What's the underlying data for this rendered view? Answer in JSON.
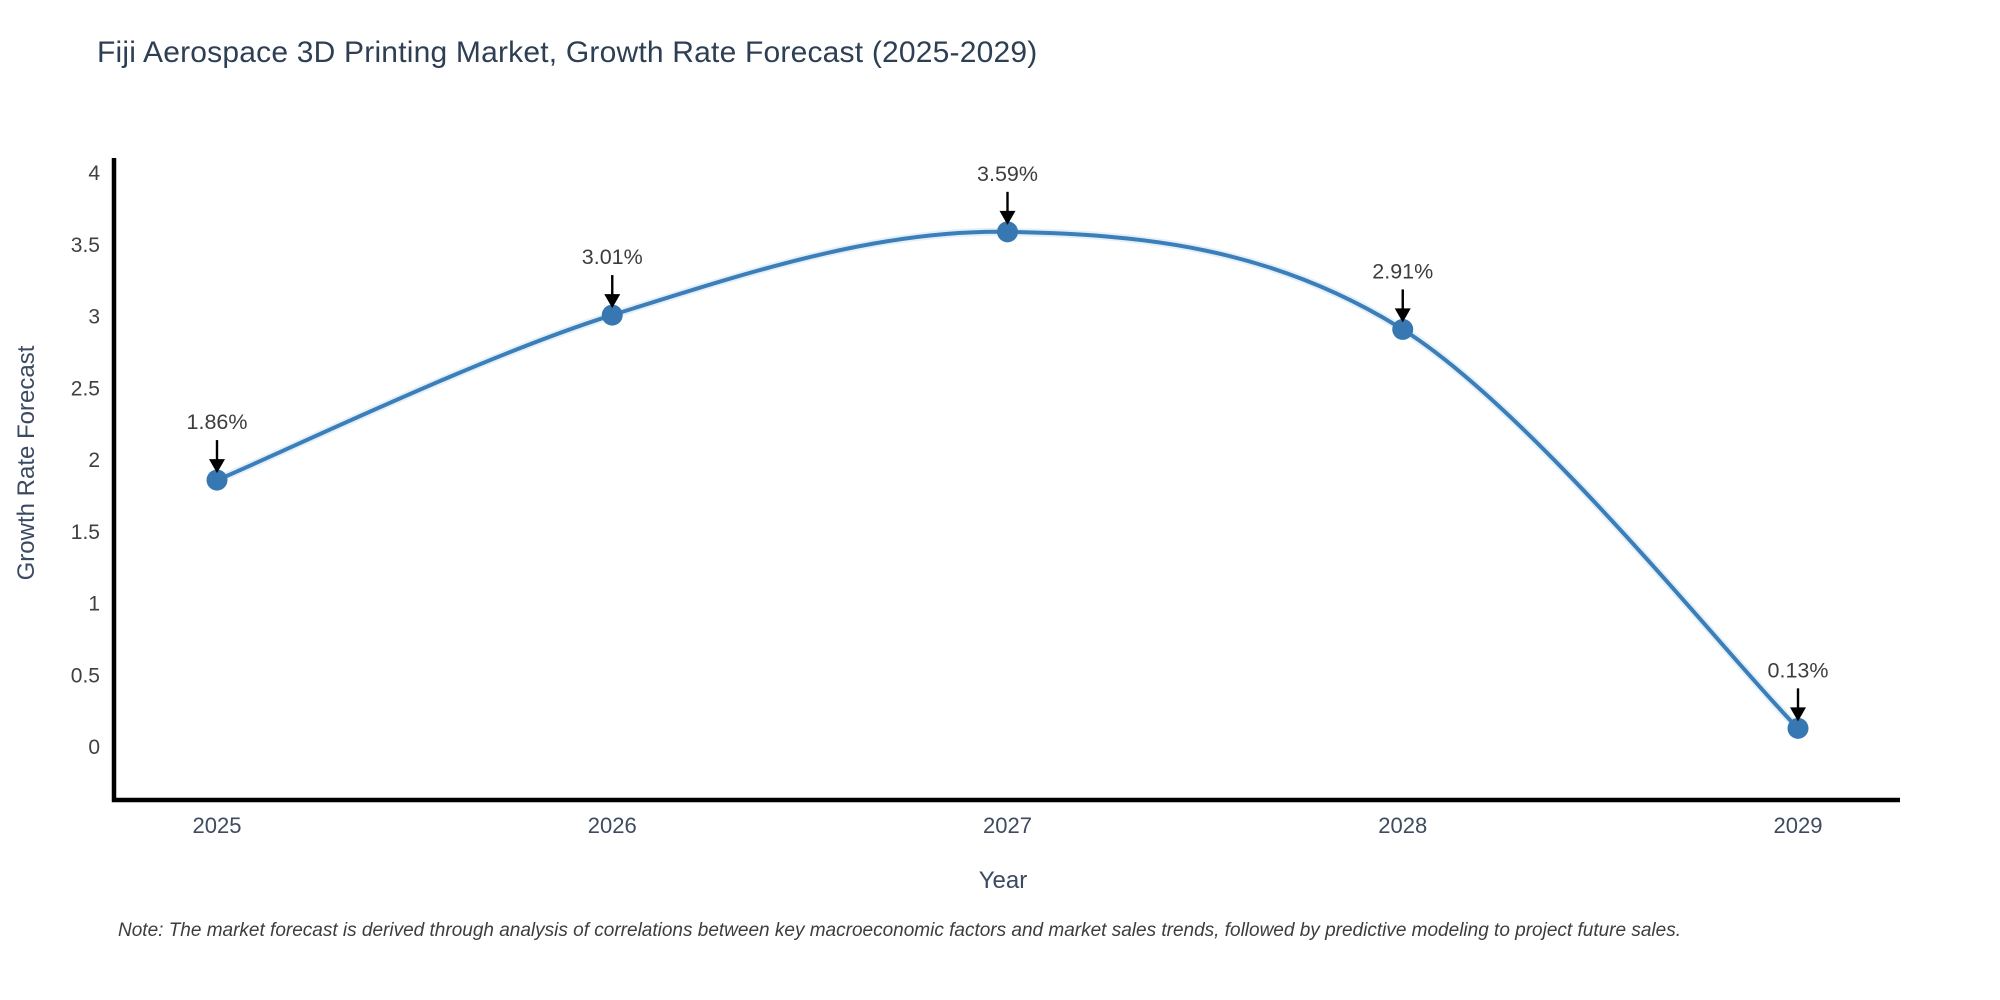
{
  "page": {
    "background": "#ffffff"
  },
  "chart_data": {
    "type": "line",
    "title": "Fiji Aerospace 3D Printing Market, Growth Rate Forecast (2025-2029)",
    "xlabel": "Year",
    "ylabel": "Growth Rate Forecast",
    "categories": [
      "2025",
      "2026",
      "2027",
      "2028",
      "2029"
    ],
    "values": [
      1.86,
      3.01,
      3.59,
      2.91,
      0.13
    ],
    "point_labels": [
      "1.86%",
      "3.01%",
      "3.59%",
      "2.91%",
      "0.13%"
    ],
    "ylim": [
      0,
      4
    ],
    "yticks": [
      0,
      0.5,
      1,
      1.5,
      2,
      2.5,
      3,
      3.5,
      4
    ],
    "grid": false,
    "legend": "none",
    "annotation_style": "down-arrow-above-point",
    "note": "Note: The market forecast is derived through analysis of correlations between key macroeconomic factors and market sales trends, followed by predictive modeling to project future sales.",
    "colors": {
      "line": "#3c7eb8",
      "line_halo": "#d8e9f6",
      "marker": "#3778b2",
      "annotation_arrow": "#000000",
      "annotation_text": "#3d3d3d",
      "axis_line": "#000000",
      "ytick_text": "#404040",
      "xtick_text": "#3e4a5f",
      "title_text": "#2e3f54",
      "axis_title_text": "#3b4a63"
    }
  }
}
